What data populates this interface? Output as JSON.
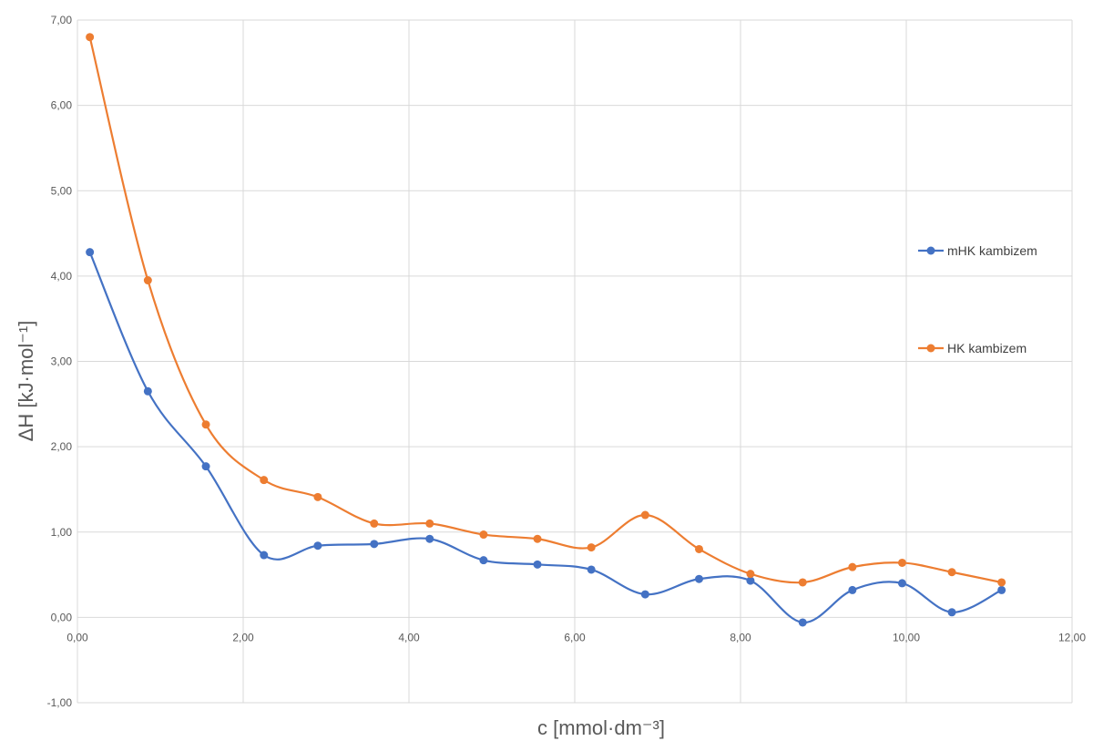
{
  "chart_data": {
    "type": "line",
    "xlabel": "c [mmol·dm⁻³]",
    "ylabel": "ΔH [kJ·mol⁻¹]",
    "xlim": [
      0,
      12
    ],
    "ylim": [
      -1,
      7
    ],
    "x_ticks": [
      "0,00",
      "2,00",
      "4,00",
      "6,00",
      "8,00",
      "10,00",
      "12,00"
    ],
    "y_ticks": [
      "-1,00",
      "0,00",
      "1,00",
      "2,00",
      "3,00",
      "4,00",
      "5,00",
      "6,00",
      "7,00"
    ],
    "grid": true,
    "legend_position": "right",
    "x": [
      0.15,
      0.85,
      1.55,
      2.25,
      2.9,
      3.58,
      4.25,
      4.9,
      5.55,
      6.2,
      6.85,
      7.5,
      8.12,
      8.75,
      9.35,
      9.95,
      10.55,
      11.15
    ],
    "series": [
      {
        "name": "mHK kambizem",
        "color": "#4472C4",
        "values": [
          4.28,
          2.65,
          1.77,
          0.73,
          0.84,
          0.86,
          0.92,
          0.67,
          0.62,
          0.56,
          0.27,
          0.45,
          0.43,
          -0.06,
          0.32,
          0.4,
          0.06,
          0.32
        ]
      },
      {
        "name": "HK kambizem",
        "color": "#ED7D31",
        "values": [
          6.8,
          3.95,
          2.26,
          1.61,
          1.41,
          1.1,
          1.1,
          0.97,
          0.92,
          0.82,
          1.2,
          0.8,
          0.51,
          0.41,
          0.59,
          0.64,
          0.53,
          0.41
        ]
      }
    ]
  }
}
